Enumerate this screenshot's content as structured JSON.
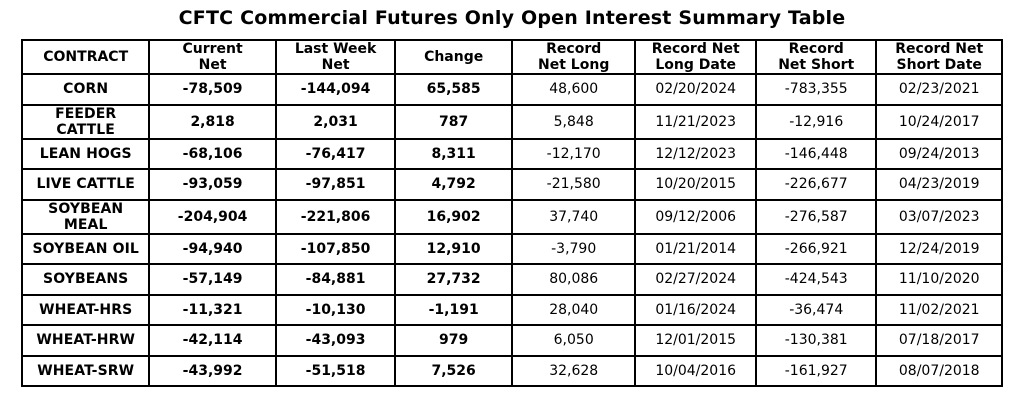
{
  "colors": {
    "negative": "#ff0000",
    "positive": "#008000",
    "text": "#000000",
    "border": "#000000",
    "background": "#ffffff"
  },
  "chart_data": {
    "type": "table",
    "title": "CFTC Commercial Futures Only Open Interest Summary Table",
    "columns": [
      "CONTRACT",
      "Current\nNet",
      "Last Week\nNet",
      "Change",
      "Record\nNet Long",
      "Record Net\nLong Date",
      "Record\nNet Short",
      "Record Net\nShort Date"
    ],
    "cell_names": [
      "contract-cell",
      "current-net-cell",
      "last-week-net-cell",
      "change-cell",
      "record-net-long-cell",
      "record-net-long-date-cell",
      "record-net-short-cell",
      "record-net-short-date-cell"
    ],
    "rows": [
      {
        "cells": [
          [
            "CORN",
            "contract"
          ],
          [
            "-78,509",
            "neg"
          ],
          [
            "-144,094",
            "neg"
          ],
          [
            "65,585",
            "pos"
          ],
          [
            "48,600",
            "plain"
          ],
          [
            "02/20/2024",
            "plain"
          ],
          [
            "-783,355",
            "plain"
          ],
          [
            "02/23/2021",
            "plain"
          ]
        ]
      },
      {
        "cells": [
          [
            "FEEDER CATTLE",
            "contract"
          ],
          [
            "2,818",
            "pos"
          ],
          [
            "2,031",
            "pos"
          ],
          [
            "787",
            "pos"
          ],
          [
            "5,848",
            "plain"
          ],
          [
            "11/21/2023",
            "plain"
          ],
          [
            "-12,916",
            "plain"
          ],
          [
            "10/24/2017",
            "plain"
          ]
        ]
      },
      {
        "cells": [
          [
            "LEAN HOGS",
            "contract"
          ],
          [
            "-68,106",
            "neg"
          ],
          [
            "-76,417",
            "neg"
          ],
          [
            "8,311",
            "pos"
          ],
          [
            "-12,170",
            "plain"
          ],
          [
            "12/12/2023",
            "plain"
          ],
          [
            "-146,448",
            "plain"
          ],
          [
            "09/24/2013",
            "plain"
          ]
        ]
      },
      {
        "cells": [
          [
            "LIVE CATTLE",
            "contract"
          ],
          [
            "-93,059",
            "neg"
          ],
          [
            "-97,851",
            "neg"
          ],
          [
            "4,792",
            "pos"
          ],
          [
            "-21,580",
            "plain"
          ],
          [
            "10/20/2015",
            "plain"
          ],
          [
            "-226,677",
            "plain"
          ],
          [
            "04/23/2019",
            "plain"
          ]
        ]
      },
      {
        "cells": [
          [
            "SOYBEAN MEAL",
            "contract"
          ],
          [
            "-204,904",
            "neg"
          ],
          [
            "-221,806",
            "neg"
          ],
          [
            "16,902",
            "pos"
          ],
          [
            "37,740",
            "plain"
          ],
          [
            "09/12/2006",
            "plain"
          ],
          [
            "-276,587",
            "plain"
          ],
          [
            "03/07/2023",
            "plain"
          ]
        ]
      },
      {
        "cells": [
          [
            "SOYBEAN OIL",
            "contract"
          ],
          [
            "-94,940",
            "neg"
          ],
          [
            "-107,850",
            "neg"
          ],
          [
            "12,910",
            "pos"
          ],
          [
            "-3,790",
            "plain"
          ],
          [
            "01/21/2014",
            "plain"
          ],
          [
            "-266,921",
            "plain"
          ],
          [
            "12/24/2019",
            "plain"
          ]
        ]
      },
      {
        "cells": [
          [
            "SOYBEANS",
            "contract"
          ],
          [
            "-57,149",
            "neg"
          ],
          [
            "-84,881",
            "neg"
          ],
          [
            "27,732",
            "pos"
          ],
          [
            "80,086",
            "plain"
          ],
          [
            "02/27/2024",
            "plain"
          ],
          [
            "-424,543",
            "plain"
          ],
          [
            "11/10/2020",
            "plain"
          ]
        ]
      },
      {
        "cells": [
          [
            "WHEAT-HRS",
            "contract"
          ],
          [
            "-11,321",
            "neg"
          ],
          [
            "-10,130",
            "neg"
          ],
          [
            "-1,191",
            "neg"
          ],
          [
            "28,040",
            "plain"
          ],
          [
            "01/16/2024",
            "plain"
          ],
          [
            "-36,474",
            "plain"
          ],
          [
            "11/02/2021",
            "plain"
          ]
        ]
      },
      {
        "cells": [
          [
            "WHEAT-HRW",
            "contract"
          ],
          [
            "-42,114",
            "neg"
          ],
          [
            "-43,093",
            "neg"
          ],
          [
            "979",
            "pos"
          ],
          [
            "6,050",
            "plain"
          ],
          [
            "12/01/2015",
            "plain"
          ],
          [
            "-130,381",
            "plain"
          ],
          [
            "07/18/2017",
            "plain"
          ]
        ]
      },
      {
        "cells": [
          [
            "WHEAT-SRW",
            "contract"
          ],
          [
            "-43,992",
            "neg"
          ],
          [
            "-51,518",
            "neg"
          ],
          [
            "7,526",
            "pos"
          ],
          [
            "32,628",
            "plain"
          ],
          [
            "10/04/2016",
            "plain"
          ],
          [
            "-161,927",
            "plain"
          ],
          [
            "08/07/2018",
            "plain"
          ]
        ]
      }
    ]
  }
}
